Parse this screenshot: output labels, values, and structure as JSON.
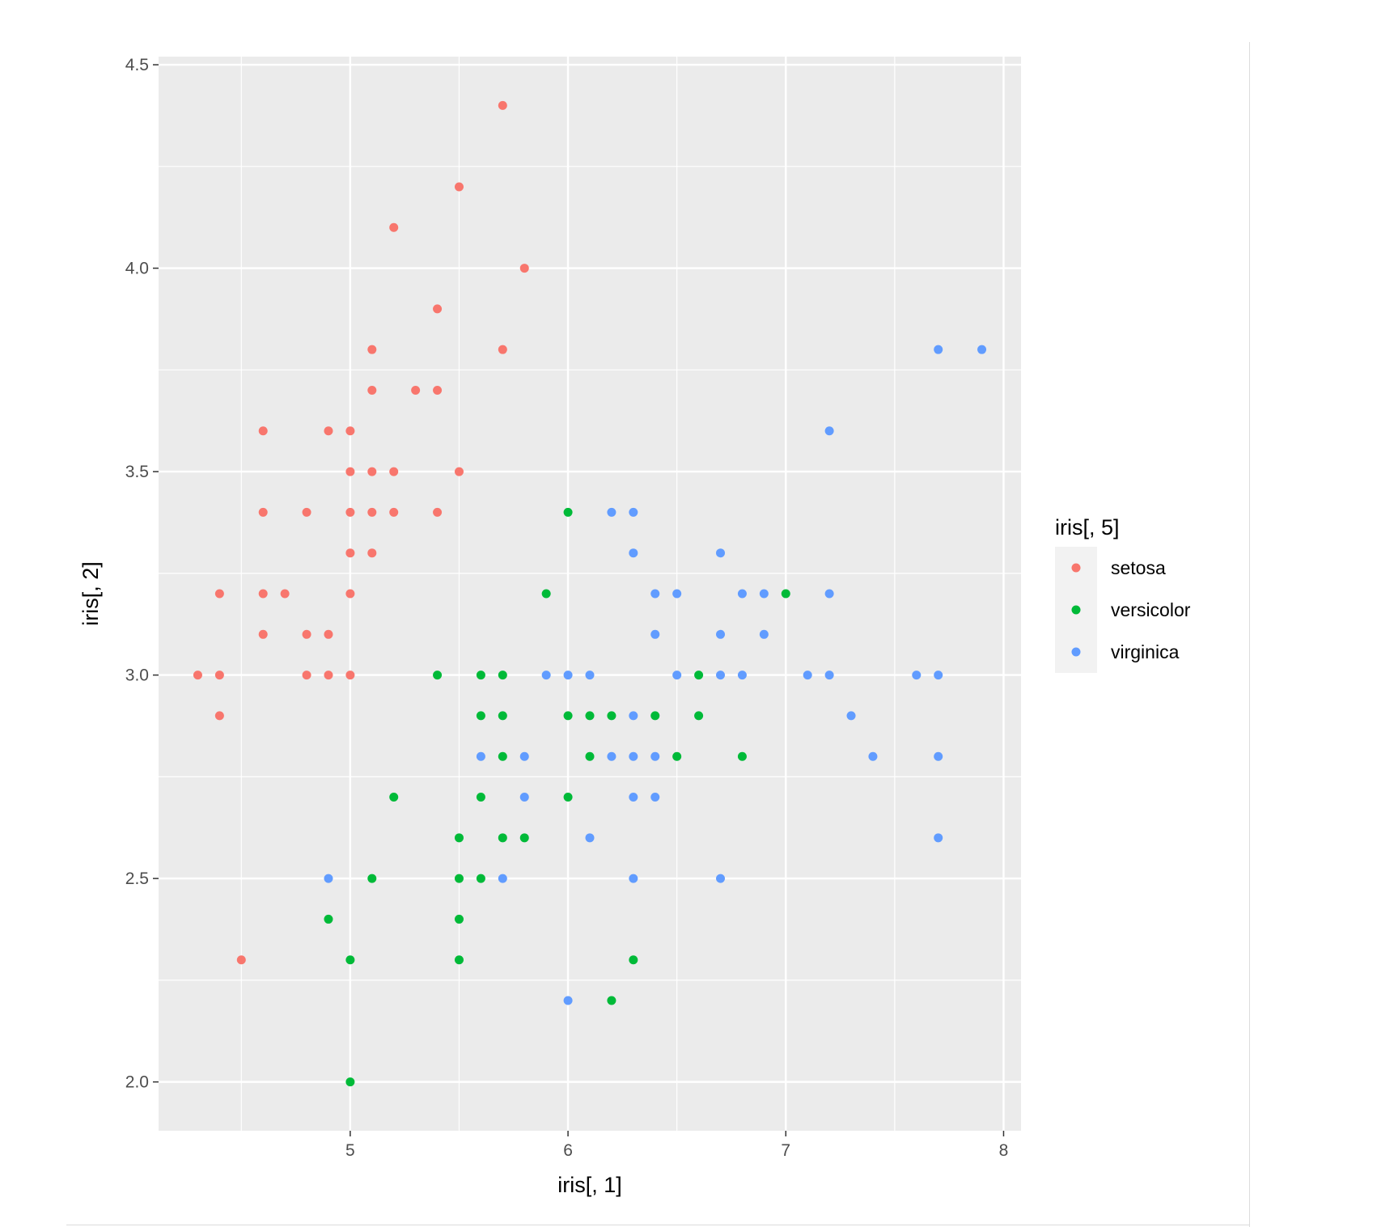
{
  "chart_data": {
    "type": "scatter",
    "title": "",
    "xlabel": "iris[, 1]",
    "ylabel": "iris[, 2]",
    "xlim": [
      4.12,
      8.08
    ],
    "ylim": [
      1.88,
      4.52
    ],
    "x_ticks": [
      5,
      6,
      7,
      8
    ],
    "x_tick_labels": [
      "5",
      "6",
      "7",
      "8"
    ],
    "y_ticks": [
      2.0,
      2.5,
      3.0,
      3.5,
      4.0,
      4.5
    ],
    "y_tick_labels": [
      "2.0",
      "2.5",
      "3.0",
      "3.5",
      "4.0",
      "4.5"
    ],
    "grid": true,
    "legend": {
      "title": "iris[, 5]",
      "position": "right"
    },
    "colors": {
      "panel": "#ebebeb",
      "grid": "#ffffff"
    },
    "series": [
      {
        "name": "setosa",
        "color": "#F8766D",
        "points": [
          [
            5.7,
            4.4
          ],
          [
            5.5,
            4.2
          ],
          [
            5.2,
            4.1
          ],
          [
            5.8,
            4.0
          ],
          [
            5.4,
            3.9
          ],
          [
            5.1,
            3.8
          ],
          [
            5.7,
            3.8
          ],
          [
            5.1,
            3.7
          ],
          [
            5.3,
            3.7
          ],
          [
            5.4,
            3.7
          ],
          [
            4.6,
            3.6
          ],
          [
            4.9,
            3.6
          ],
          [
            5.0,
            3.6
          ],
          [
            5.0,
            3.5
          ],
          [
            5.1,
            3.5
          ],
          [
            5.2,
            3.5
          ],
          [
            5.5,
            3.5
          ],
          [
            4.6,
            3.4
          ],
          [
            4.8,
            3.4
          ],
          [
            5.0,
            3.4
          ],
          [
            5.1,
            3.4
          ],
          [
            5.2,
            3.4
          ],
          [
            5.4,
            3.4
          ],
          [
            5.0,
            3.3
          ],
          [
            5.1,
            3.3
          ],
          [
            4.4,
            3.2
          ],
          [
            4.6,
            3.2
          ],
          [
            4.7,
            3.2
          ],
          [
            5.0,
            3.2
          ],
          [
            4.6,
            3.1
          ],
          [
            4.8,
            3.1
          ],
          [
            4.9,
            3.1
          ],
          [
            4.3,
            3.0
          ],
          [
            4.4,
            3.0
          ],
          [
            4.8,
            3.0
          ],
          [
            4.9,
            3.0
          ],
          [
            5.0,
            3.0
          ],
          [
            4.4,
            2.9
          ],
          [
            4.5,
            2.3
          ]
        ]
      },
      {
        "name": "versicolor",
        "color": "#00BA38",
        "points": [
          [
            6.0,
            3.4
          ],
          [
            5.9,
            3.2
          ],
          [
            7.0,
            3.2
          ],
          [
            5.4,
            3.0
          ],
          [
            5.6,
            3.0
          ],
          [
            5.7,
            3.0
          ],
          [
            6.6,
            3.0
          ],
          [
            5.6,
            2.9
          ],
          [
            5.7,
            2.9
          ],
          [
            6.0,
            2.9
          ],
          [
            6.1,
            2.9
          ],
          [
            6.2,
            2.9
          ],
          [
            6.4,
            2.9
          ],
          [
            6.6,
            2.9
          ],
          [
            5.7,
            2.8
          ],
          [
            6.1,
            2.8
          ],
          [
            6.5,
            2.8
          ],
          [
            6.8,
            2.8
          ],
          [
            5.2,
            2.7
          ],
          [
            5.6,
            2.7
          ],
          [
            6.0,
            2.7
          ],
          [
            5.5,
            2.6
          ],
          [
            5.7,
            2.6
          ],
          [
            5.8,
            2.6
          ],
          [
            5.1,
            2.5
          ],
          [
            5.5,
            2.5
          ],
          [
            5.6,
            2.5
          ],
          [
            4.9,
            2.4
          ],
          [
            5.5,
            2.4
          ],
          [
            5.0,
            2.3
          ],
          [
            5.5,
            2.3
          ],
          [
            6.3,
            2.3
          ],
          [
            6.2,
            2.2
          ],
          [
            5.0,
            2.0
          ]
        ]
      },
      {
        "name": "virginica",
        "color": "#619CFF",
        "points": [
          [
            7.7,
            3.8
          ],
          [
            7.9,
            3.8
          ],
          [
            7.2,
            3.6
          ],
          [
            6.2,
            3.4
          ],
          [
            6.3,
            3.4
          ],
          [
            6.3,
            3.3
          ],
          [
            6.7,
            3.3
          ],
          [
            6.4,
            3.2
          ],
          [
            6.5,
            3.2
          ],
          [
            6.8,
            3.2
          ],
          [
            6.9,
            3.2
          ],
          [
            7.2,
            3.2
          ],
          [
            6.4,
            3.1
          ],
          [
            6.7,
            3.1
          ],
          [
            6.9,
            3.1
          ],
          [
            5.9,
            3.0
          ],
          [
            6.0,
            3.0
          ],
          [
            6.1,
            3.0
          ],
          [
            6.5,
            3.0
          ],
          [
            6.7,
            3.0
          ],
          [
            6.8,
            3.0
          ],
          [
            7.1,
            3.0
          ],
          [
            7.2,
            3.0
          ],
          [
            7.6,
            3.0
          ],
          [
            7.7,
            3.0
          ],
          [
            6.3,
            2.9
          ],
          [
            7.3,
            2.9
          ],
          [
            5.6,
            2.8
          ],
          [
            5.8,
            2.8
          ],
          [
            6.2,
            2.8
          ],
          [
            6.3,
            2.8
          ],
          [
            6.4,
            2.8
          ],
          [
            7.4,
            2.8
          ],
          [
            7.7,
            2.8
          ],
          [
            5.8,
            2.7
          ],
          [
            6.3,
            2.7
          ],
          [
            6.4,
            2.7
          ],
          [
            6.1,
            2.6
          ],
          [
            7.7,
            2.6
          ],
          [
            4.9,
            2.5
          ],
          [
            5.7,
            2.5
          ],
          [
            6.3,
            2.5
          ],
          [
            6.7,
            2.5
          ],
          [
            6.0,
            2.2
          ]
        ]
      }
    ]
  }
}
